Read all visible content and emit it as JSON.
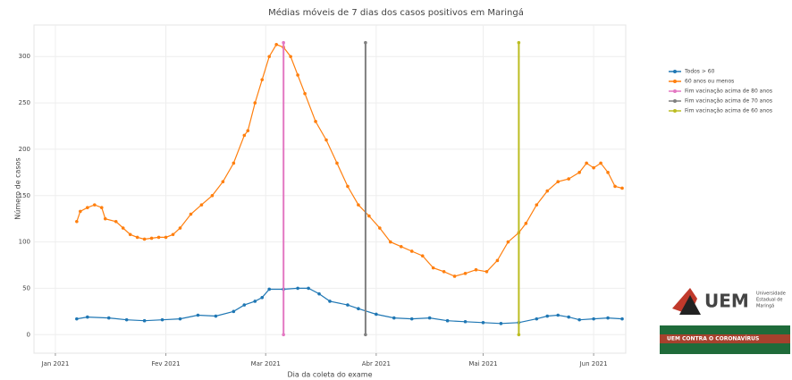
{
  "chart_data": {
    "type": "line",
    "title": "Médias móveis de 7 dias dos casos positivos em Maringá",
    "x_label": "Dia da coleta do exame",
    "y_label": "Número de casos",
    "xlim": [
      -6,
      160
    ],
    "ylim": [
      -20,
      334
    ],
    "xticks": [
      {
        "value": 0,
        "label": "Jan 2021"
      },
      {
        "value": 31,
        "label": "Fev 2021"
      },
      {
        "value": 59,
        "label": "Mar 2021"
      },
      {
        "value": 90,
        "label": "Abr 2021"
      },
      {
        "value": 120,
        "label": "Mai 2021"
      },
      {
        "value": 151,
        "label": "Jun 2021"
      }
    ],
    "yticks": [
      0,
      50,
      100,
      150,
      200,
      250,
      300
    ],
    "grid": true,
    "legend": "right",
    "series": [
      {
        "name": "Todos > 60",
        "color": "#1f77b4",
        "x": [
          6,
          9,
          15,
          20,
          25,
          30,
          35,
          40,
          45,
          50,
          53,
          56,
          58,
          60,
          64,
          68,
          71,
          74,
          77,
          82,
          85,
          90,
          95,
          100,
          105,
          110,
          115,
          120,
          125,
          130,
          135,
          138,
          141,
          144,
          147,
          151,
          155,
          159
        ],
        "values": [
          17,
          19,
          18,
          16,
          15,
          16,
          17,
          21,
          20,
          25,
          32,
          36,
          40,
          49,
          49,
          50,
          50,
          44,
          36,
          32,
          28,
          22,
          18,
          17,
          18,
          15,
          14,
          13,
          12,
          13,
          17,
          20,
          21,
          19,
          16,
          17,
          18,
          17
        ]
      },
      {
        "name": "60 anos ou menos",
        "color": "#ff7f0e",
        "x": [
          6,
          7,
          9,
          11,
          13,
          14,
          17,
          19,
          21,
          23,
          25,
          27,
          29,
          31,
          33,
          35,
          38,
          41,
          44,
          47,
          50,
          53,
          54,
          56,
          58,
          60,
          62,
          64,
          66,
          68,
          70,
          73,
          76,
          79,
          82,
          85,
          88,
          91,
          94,
          97,
          100,
          103,
          106,
          109,
          112,
          115,
          118,
          121,
          124,
          127,
          130,
          132,
          135,
          138,
          141,
          144,
          147,
          149,
          151,
          153,
          155,
          157,
          159
        ],
        "values": [
          122,
          133,
          137,
          140,
          137,
          125,
          122,
          115,
          108,
          105,
          103,
          104,
          105,
          105,
          108,
          115,
          130,
          140,
          150,
          165,
          185,
          215,
          220,
          250,
          275,
          300,
          313,
          310,
          300,
          280,
          260,
          230,
          210,
          185,
          160,
          140,
          128,
          115,
          100,
          95,
          90,
          85,
          72,
          68,
          63,
          66,
          70,
          68,
          80,
          100,
          110,
          120,
          140,
          155,
          165,
          168,
          175,
          185,
          180,
          185,
          175,
          160,
          158
        ]
      },
      {
        "name": "Fim vacinação acima de 80 anos",
        "color": "#e377c2",
        "x": [
          64,
          64
        ],
        "values": [
          0,
          315
        ]
      },
      {
        "name": "Fim vacinação acima de 70 anos",
        "color": "#7f7f7f",
        "x": [
          87,
          87
        ],
        "values": [
          0,
          315
        ]
      },
      {
        "name": "Fim vacinação acima de 60 anos",
        "color": "#bcbd22",
        "x": [
          130,
          130
        ],
        "values": [
          0,
          315
        ]
      }
    ]
  },
  "branding": {
    "logo": "UEM",
    "university": [
      "Universidade",
      "Estadual de",
      "Maringá"
    ],
    "banner": "UEM CONTRA O CORONAVÍRUS"
  }
}
